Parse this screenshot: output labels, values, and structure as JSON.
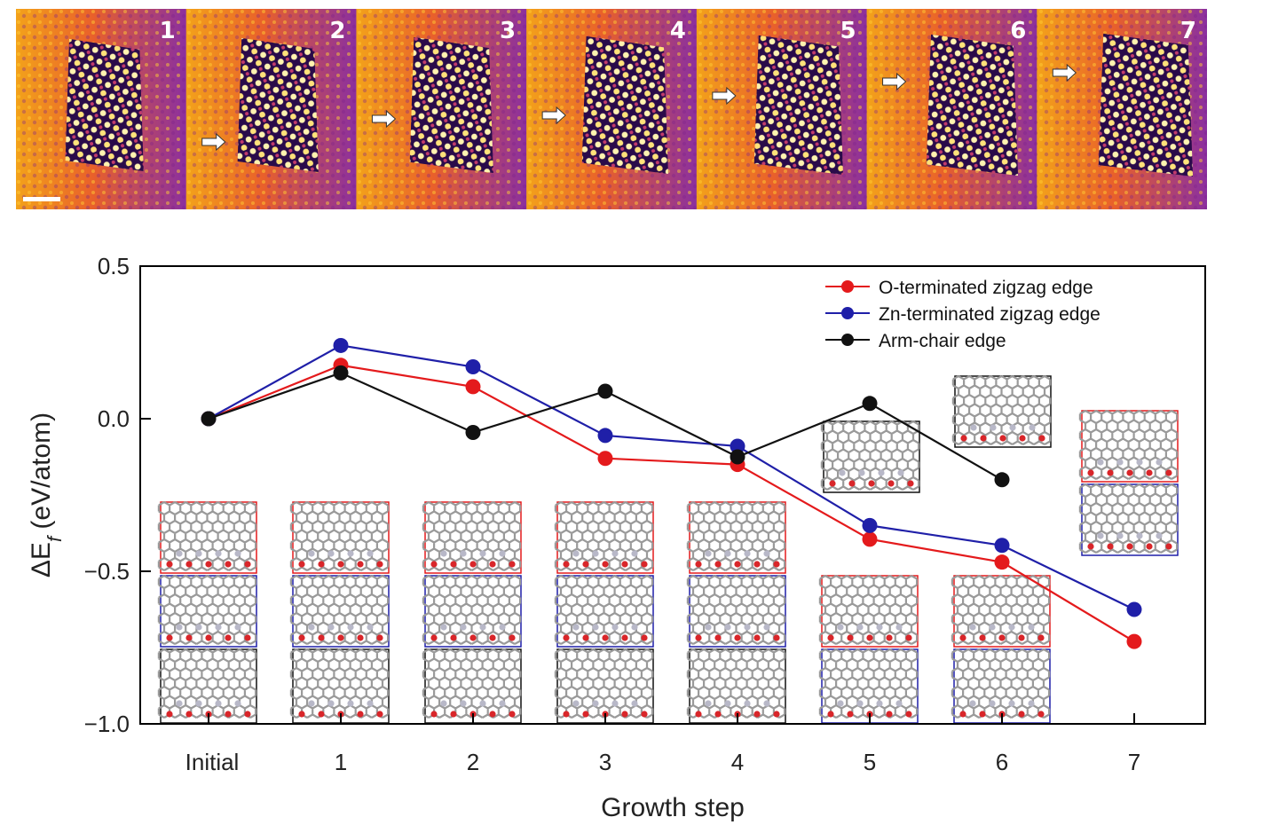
{
  "image_strip": {
    "panels": [
      "1",
      "2",
      "3",
      "4",
      "5",
      "6",
      "7"
    ],
    "arrow_panels": [
      "2",
      "3",
      "4",
      "5",
      "6",
      "7"
    ]
  },
  "chart_data": {
    "type": "line",
    "categories": [
      "Initial",
      "1",
      "2",
      "3",
      "4",
      "5",
      "6",
      "7"
    ],
    "xlabel": "Growth step",
    "ylabel_prefix": "ΔE",
    "ylabel_sub": "f",
    "ylabel_suffix": " (eV/atom)",
    "ylim": [
      -1.0,
      0.5
    ],
    "yticks": [
      "0.5",
      "0.0",
      "−0.5",
      "−1.0"
    ],
    "ytick_values": [
      0.5,
      0.0,
      -0.5,
      -1.0
    ],
    "legend_position": "top-right",
    "grid": false,
    "series": [
      {
        "name": "O-terminated zigzag edge",
        "color": "#e41a1c",
        "values": [
          0.0,
          0.175,
          0.105,
          -0.13,
          -0.15,
          -0.395,
          -0.47,
          -0.73
        ]
      },
      {
        "name": "Zn-terminated zigzag edge",
        "color": "#1f1fa8",
        "values": [
          0.0,
          0.24,
          0.17,
          -0.055,
          -0.09,
          -0.35,
          -0.415,
          -0.625
        ]
      },
      {
        "name": "Arm-chair edge",
        "color": "#111111",
        "values": [
          0.0,
          0.15,
          -0.045,
          0.09,
          -0.125,
          0.05,
          -0.2,
          null
        ]
      }
    ]
  }
}
